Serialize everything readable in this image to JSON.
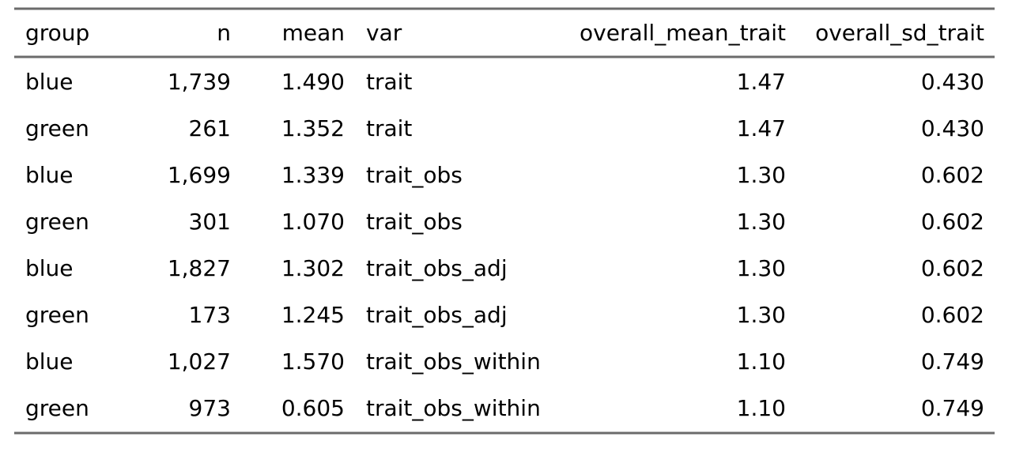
{
  "table": {
    "header": [
      "group",
      "n",
      "mean",
      "var",
      "overall_mean_trait",
      "overall_sd_trait"
    ],
    "rows": [
      [
        "blue",
        "1,739",
        "1.490",
        "trait",
        "1.47",
        "0.430"
      ],
      [
        "green",
        "261",
        "1.352",
        "trait",
        "1.47",
        "0.430"
      ],
      [
        "blue",
        "1,699",
        "1.339",
        "trait_obs",
        "1.30",
        "0.602"
      ],
      [
        "green",
        "301",
        "1.070",
        "trait_obs",
        "1.30",
        "0.602"
      ],
      [
        "blue",
        "1,827",
        "1.302",
        "trait_obs_adj",
        "1.30",
        "0.602"
      ],
      [
        "green",
        "173",
        "1.245",
        "trait_obs_adj",
        "1.30",
        "0.602"
      ],
      [
        "blue",
        "1,027",
        "1.570",
        "trait_obs_within",
        "1.10",
        "0.749"
      ],
      [
        "green",
        "973",
        "0.605",
        "trait_obs_within",
        "1.10",
        "0.749"
      ]
    ]
  }
}
